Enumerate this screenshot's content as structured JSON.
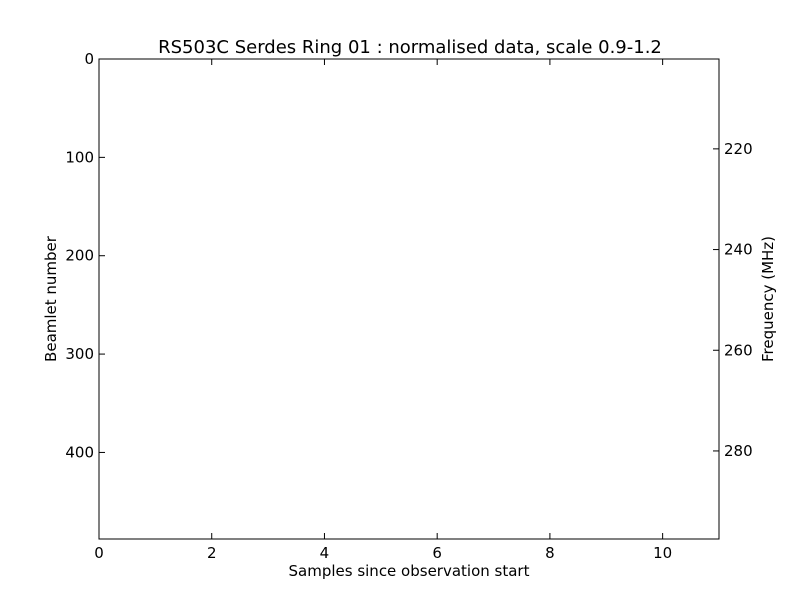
{
  "chart_data": {
    "type": "heatmap",
    "title": "RS503C Serdes Ring 01 : normalised data, scale 0.9-1.2",
    "xlabel": "Samples since observation start",
    "ylabel": "Beamlet number",
    "y2label": "Frequency (MHz)",
    "xlim": [
      0,
      11
    ],
    "ylim": [
      488,
      0
    ],
    "y2lim": [
      202.15,
      297.49
    ],
    "xticks": [
      0,
      2,
      4,
      6,
      8,
      10
    ],
    "yticks": [
      0,
      100,
      200,
      300,
      400
    ],
    "y2ticks": [
      220,
      240,
      260,
      280
    ],
    "values": [],
    "grid": false,
    "colors": {
      "axes": "#000000",
      "background": "#ffffff"
    }
  }
}
